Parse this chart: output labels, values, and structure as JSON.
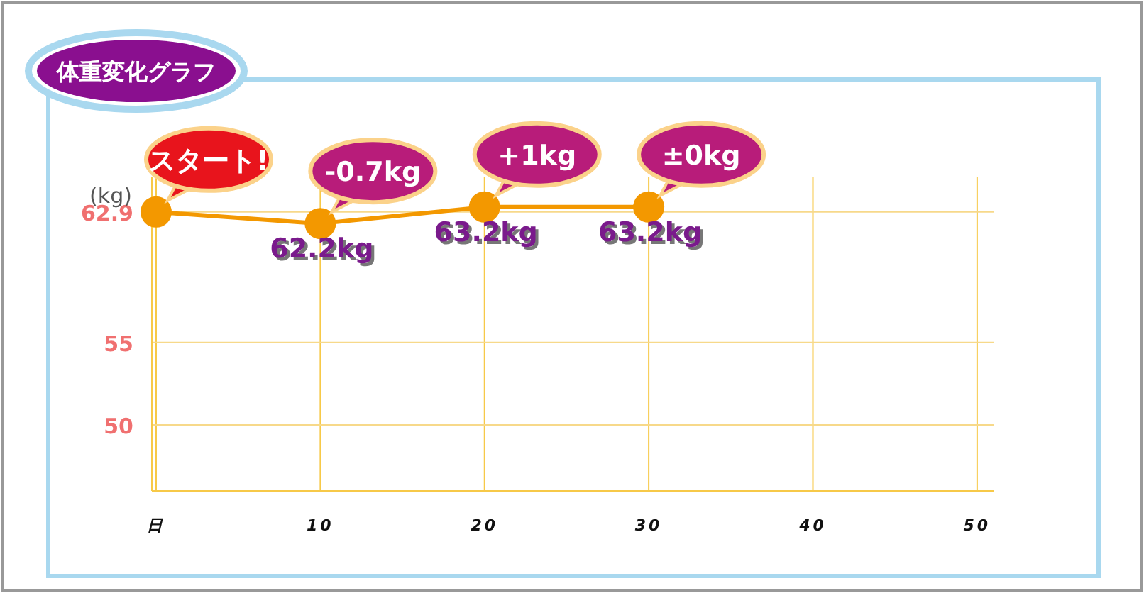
{
  "chart_data": {
    "type": "line",
    "title": "体重変化グラフ",
    "ylabel": "(kg)",
    "x": [
      0,
      10,
      20,
      30
    ],
    "values": [
      62.9,
      62.2,
      63.2,
      63.2
    ],
    "color": "#f39800",
    "marker": "circle",
    "grid": true,
    "xlim": [
      0,
      51
    ],
    "ylim": [
      46,
      65
    ],
    "xticks": [
      {
        "value": 0,
        "label": "日"
      },
      10,
      20,
      30,
      40,
      50
    ],
    "yticks": [
      50,
      55,
      62.9
    ],
    "value_labels": [
      null,
      "62.2kg",
      "63.2kg",
      "63.2kg"
    ],
    "annotations": [
      {
        "text": "スタート!",
        "x": 0,
        "y": 62.9
      },
      {
        "text": "-0.7kg",
        "x": 10,
        "y": 62.2
      },
      {
        "text": "+1kg",
        "x": 20,
        "y": 63.2
      },
      {
        "text": "±0kg",
        "x": 30,
        "y": 63.2
      }
    ]
  }
}
